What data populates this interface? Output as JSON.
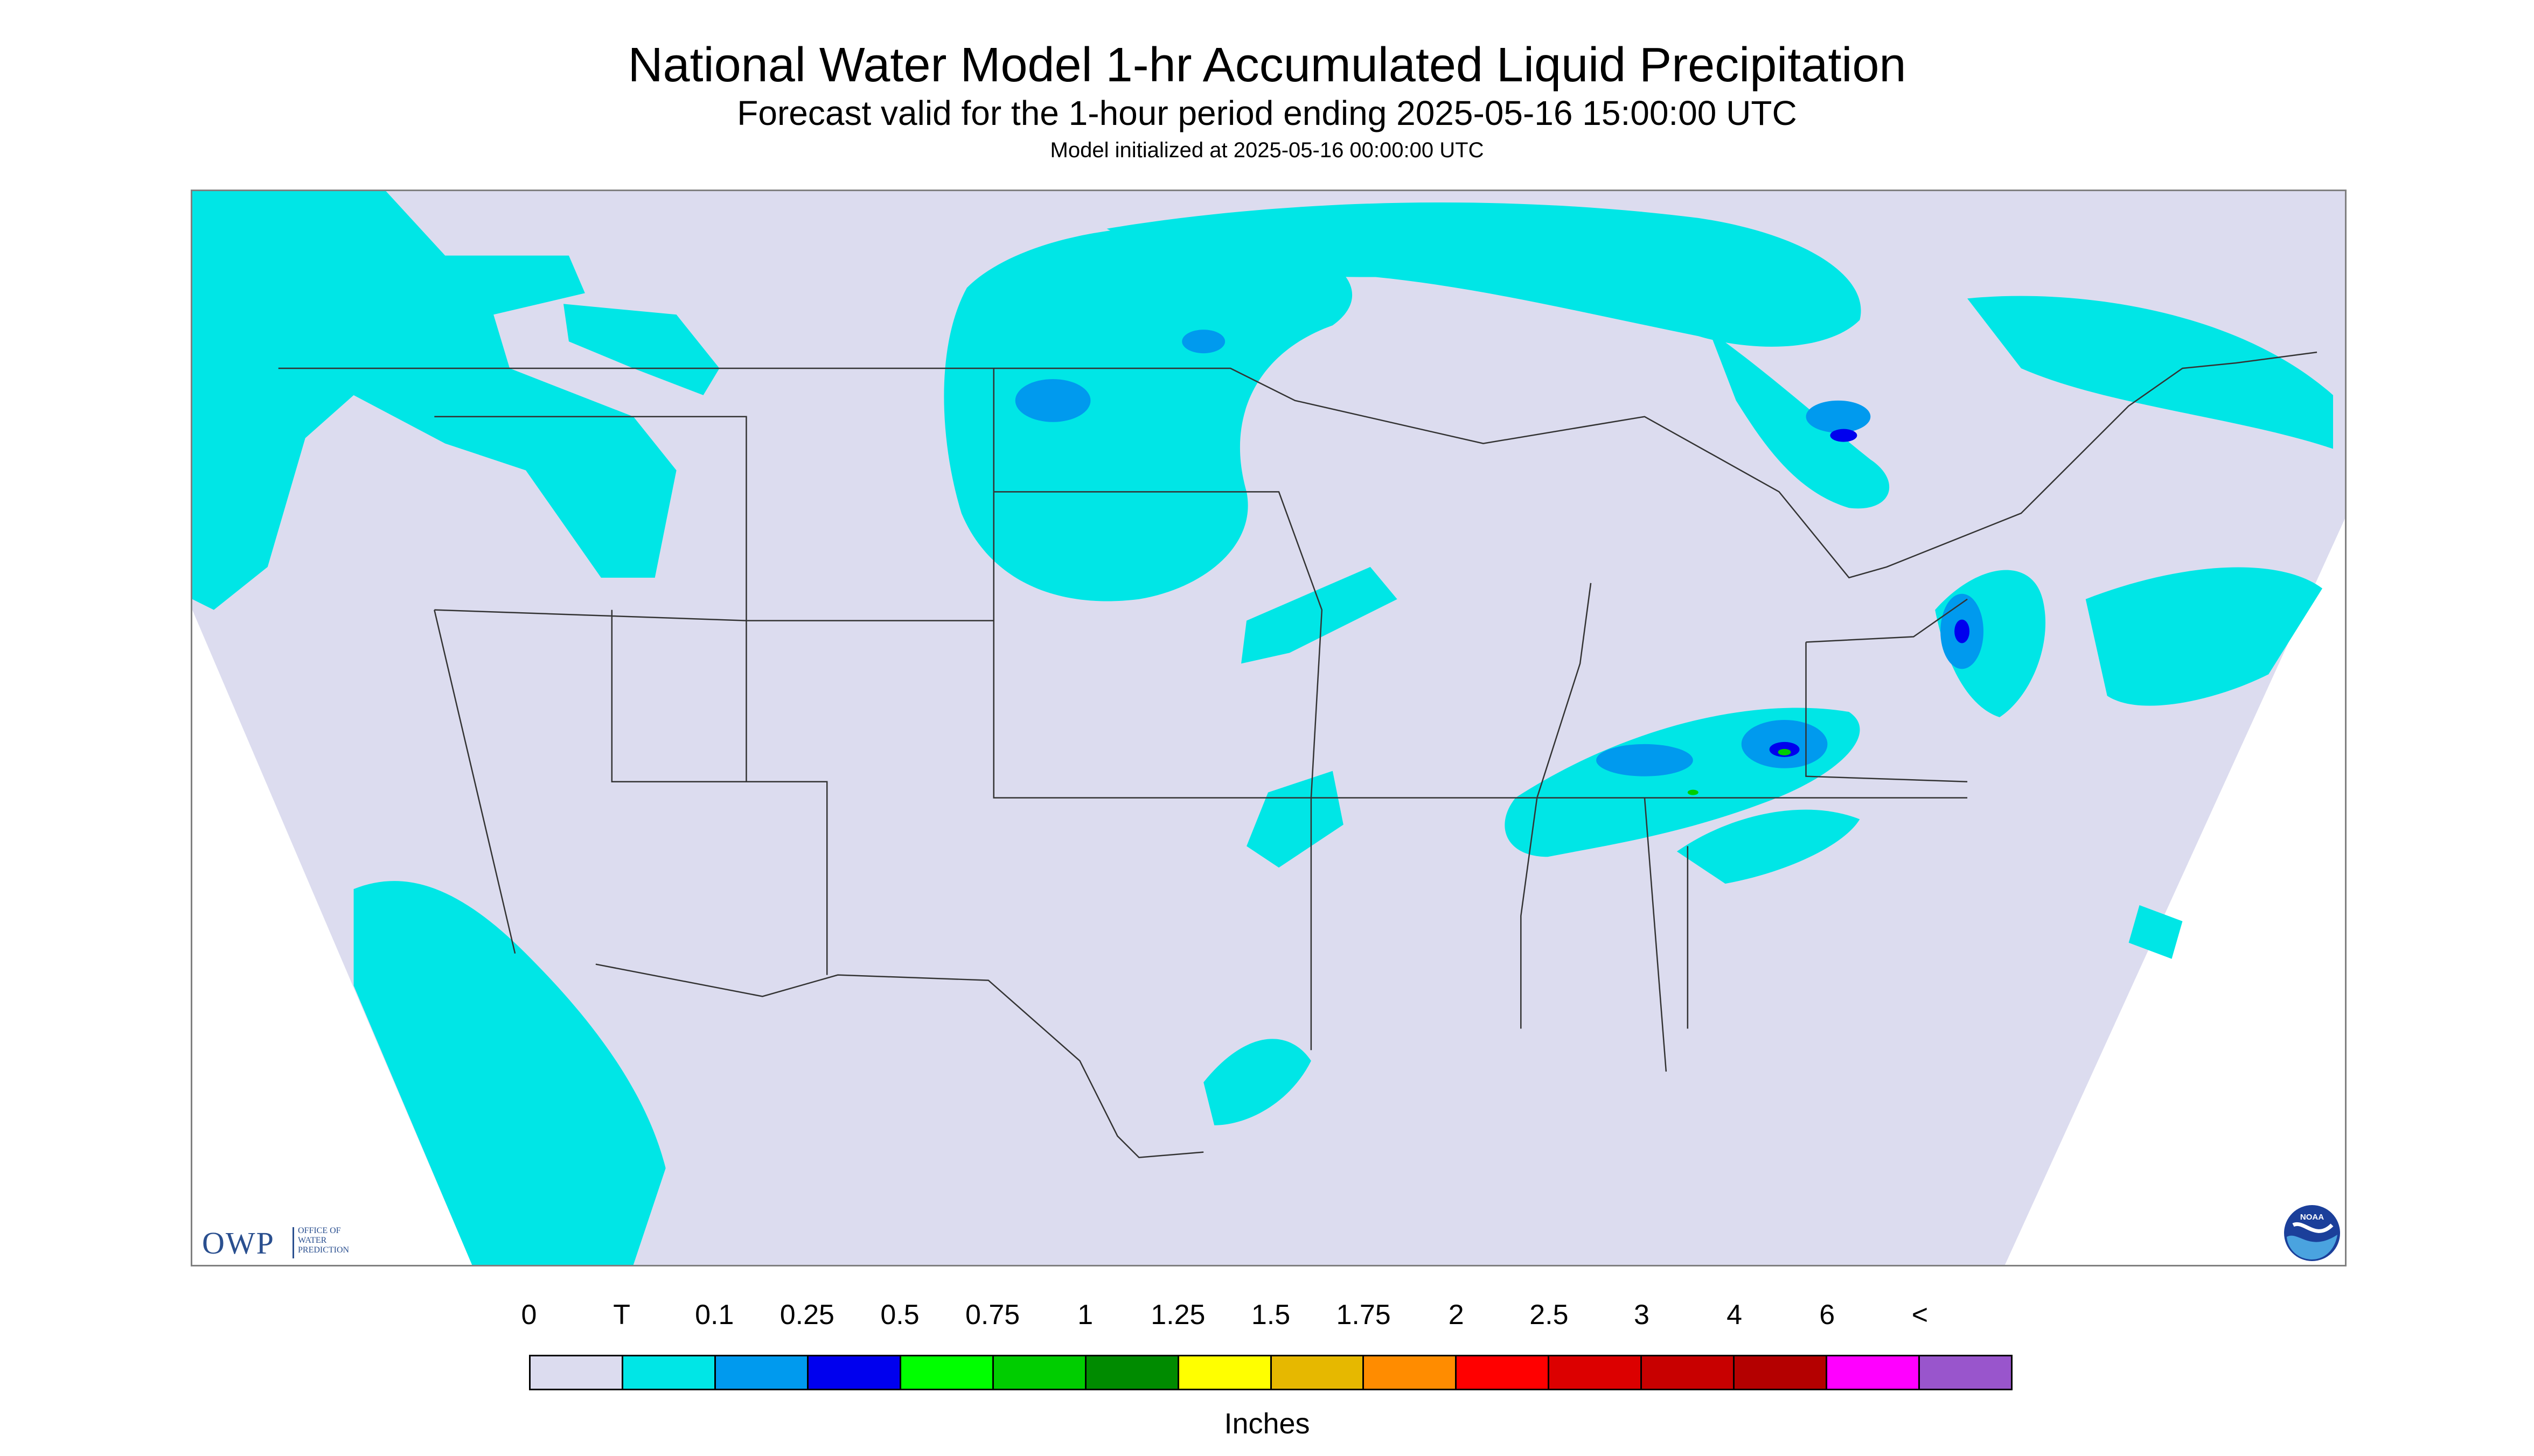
{
  "title": "National Water Model 1-hr Accumulated Liquid Precipitation",
  "subtitle": "Forecast valid for the 1-hour period ending 2025-05-16 15:00:00 UTC",
  "init_line": "Model initialized at 2025-05-16 00:00:00 UTC",
  "logos": {
    "owp": {
      "letters": "OWP",
      "line1": "OFFICE OF",
      "line2": "WATER",
      "line3": "PREDICTION"
    },
    "noaa": {
      "text": "NOAA"
    }
  },
  "legend": {
    "units": "Inches",
    "labels": [
      "0",
      "T",
      "0.1",
      "0.25",
      "0.5",
      "0.75",
      "1",
      "1.25",
      "1.5",
      "1.75",
      "2",
      "2.5",
      "3",
      "4",
      "6",
      "<"
    ],
    "colors": [
      "#dcdcef",
      "#00e6e6",
      "#009aee",
      "#0000ee",
      "#00ff00",
      "#00cd00",
      "#008b00",
      "#ffff00",
      "#e6b800",
      "#ff8c00",
      "#ff0000",
      "#dc0000",
      "#c80000",
      "#b40000",
      "#ff00ff",
      "#9955cc"
    ]
  },
  "map": {
    "domain_color": "#dcdcef",
    "outside_color": "#ffffff",
    "boundary_color": "#333333",
    "trace_color": "#00e6e6",
    "light_color": "#009aee",
    "heavy_color": "#0000ee",
    "green_color": "#00cd00"
  }
}
